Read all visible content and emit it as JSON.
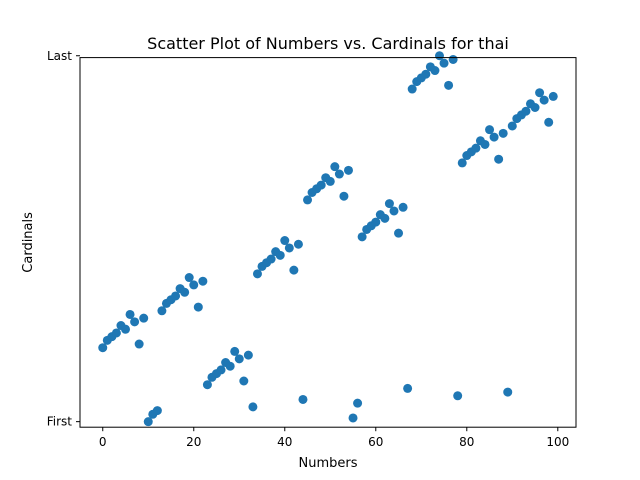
{
  "chart_data": {
    "type": "scatter",
    "title": "Scatter Plot of Numbers vs. Cardinals for thai",
    "xlabel": "Numbers",
    "ylabel": "Cardinals",
    "xlim": [
      -5,
      104
    ],
    "ylim": [
      -1.5,
      98.5
    ],
    "x_ticks": [
      0,
      20,
      40,
      60,
      80,
      100
    ],
    "y_ticks": [
      {
        "value": 0,
        "label": "First"
      },
      {
        "value": 99,
        "label": "Last"
      }
    ],
    "grid": false,
    "marker_color": "#1f77b4",
    "points": [
      [
        0,
        20
      ],
      [
        1,
        22
      ],
      [
        2,
        23
      ],
      [
        3,
        24
      ],
      [
        4,
        26
      ],
      [
        5,
        25
      ],
      [
        6,
        29
      ],
      [
        7,
        27
      ],
      [
        8,
        21
      ],
      [
        9,
        28
      ],
      [
        10,
        0
      ],
      [
        11,
        2
      ],
      [
        12,
        3
      ],
      [
        13,
        30
      ],
      [
        14,
        32
      ],
      [
        15,
        33
      ],
      [
        16,
        34
      ],
      [
        17,
        36
      ],
      [
        18,
        35
      ],
      [
        19,
        39
      ],
      [
        20,
        37
      ],
      [
        21,
        31
      ],
      [
        22,
        38
      ],
      [
        23,
        10
      ],
      [
        24,
        12
      ],
      [
        25,
        13
      ],
      [
        26,
        14
      ],
      [
        27,
        16
      ],
      [
        28,
        15
      ],
      [
        29,
        19
      ],
      [
        30,
        17
      ],
      [
        31,
        11
      ],
      [
        32,
        18
      ],
      [
        33,
        4
      ],
      [
        34,
        40
      ],
      [
        35,
        42
      ],
      [
        36,
        43
      ],
      [
        37,
        44
      ],
      [
        38,
        46
      ],
      [
        39,
        45
      ],
      [
        40,
        49
      ],
      [
        41,
        47
      ],
      [
        42,
        41
      ],
      [
        43,
        48
      ],
      [
        44,
        6
      ],
      [
        45,
        60
      ],
      [
        46,
        62
      ],
      [
        47,
        63
      ],
      [
        48,
        64
      ],
      [
        49,
        66
      ],
      [
        50,
        65
      ],
      [
        51,
        69
      ],
      [
        52,
        67
      ],
      [
        53,
        61
      ],
      [
        54,
        68
      ],
      [
        55,
        1
      ],
      [
        56,
        5
      ],
      [
        57,
        50
      ],
      [
        58,
        52
      ],
      [
        59,
        53
      ],
      [
        60,
        54
      ],
      [
        61,
        56
      ],
      [
        62,
        55
      ],
      [
        63,
        59
      ],
      [
        64,
        57
      ],
      [
        65,
        51
      ],
      [
        66,
        58
      ],
      [
        67,
        9
      ],
      [
        68,
        90
      ],
      [
        69,
        92
      ],
      [
        70,
        93
      ],
      [
        71,
        94
      ],
      [
        72,
        96
      ],
      [
        73,
        95
      ],
      [
        74,
        99
      ],
      [
        75,
        97
      ],
      [
        76,
        91
      ],
      [
        77,
        98
      ],
      [
        78,
        7
      ],
      [
        79,
        70
      ],
      [
        80,
        72
      ],
      [
        81,
        73
      ],
      [
        82,
        74
      ],
      [
        83,
        76
      ],
      [
        84,
        75
      ],
      [
        85,
        79
      ],
      [
        86,
        77
      ],
      [
        87,
        71
      ],
      [
        88,
        78
      ],
      [
        89,
        8
      ],
      [
        90,
        80
      ],
      [
        91,
        82
      ],
      [
        92,
        83
      ],
      [
        93,
        84
      ],
      [
        94,
        86
      ],
      [
        95,
        85
      ],
      [
        96,
        89
      ],
      [
        97,
        87
      ],
      [
        98,
        81
      ],
      [
        99,
        88
      ]
    ]
  }
}
